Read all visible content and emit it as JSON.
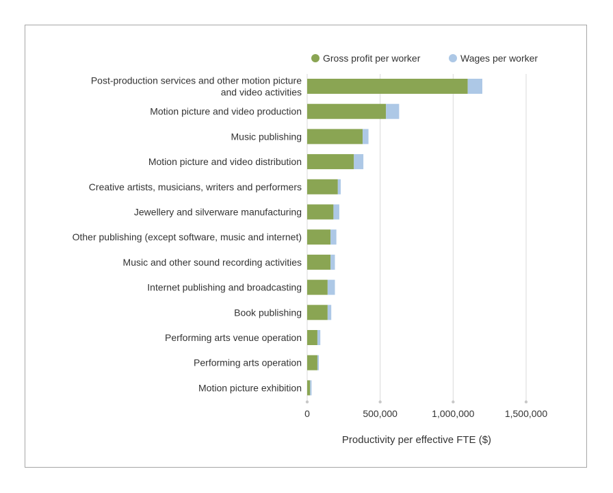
{
  "chart_data": {
    "type": "bar",
    "orientation": "horizontal",
    "stacked": true,
    "categories": [
      [
        "Post-production services and other motion picture",
        "and video activities"
      ],
      [
        "Motion picture and video production"
      ],
      [
        "Music publishing"
      ],
      [
        "Motion picture and video distribution"
      ],
      [
        "Creative artists, musicians, writers and performers"
      ],
      [
        "Jewellery and silverware manufacturing"
      ],
      [
        "Other publishing (except software, music and internet)"
      ],
      [
        "Music and other sound recording activities"
      ],
      [
        "Internet publishing and broadcasting"
      ],
      [
        "Book publishing"
      ],
      [
        "Performing arts venue operation"
      ],
      [
        "Performing arts operation"
      ],
      [
        "Motion picture exhibition"
      ]
    ],
    "series": [
      {
        "name": "Gross profit per worker",
        "color": "#8aa553",
        "values": [
          1100000,
          540000,
          380000,
          320000,
          210000,
          180000,
          160000,
          160000,
          140000,
          140000,
          70000,
          70000,
          20000
        ]
      },
      {
        "name": "Wages per worker",
        "color": "#adc8e6",
        "values": [
          100000,
          90000,
          40000,
          65000,
          20000,
          40000,
          40000,
          30000,
          50000,
          25000,
          20000,
          10000,
          10000
        ]
      }
    ],
    "xlabel": "Productivity per effective FTE ($)",
    "xlim": [
      0,
      1650000
    ],
    "xticks": [
      0,
      500000,
      1000000,
      1500000
    ],
    "xtick_labels": [
      "0",
      "500,000",
      "1,000,000",
      "1,500,000"
    ],
    "grid": true,
    "legend": "top-right",
    "grid_color": "#d9d9d9"
  }
}
